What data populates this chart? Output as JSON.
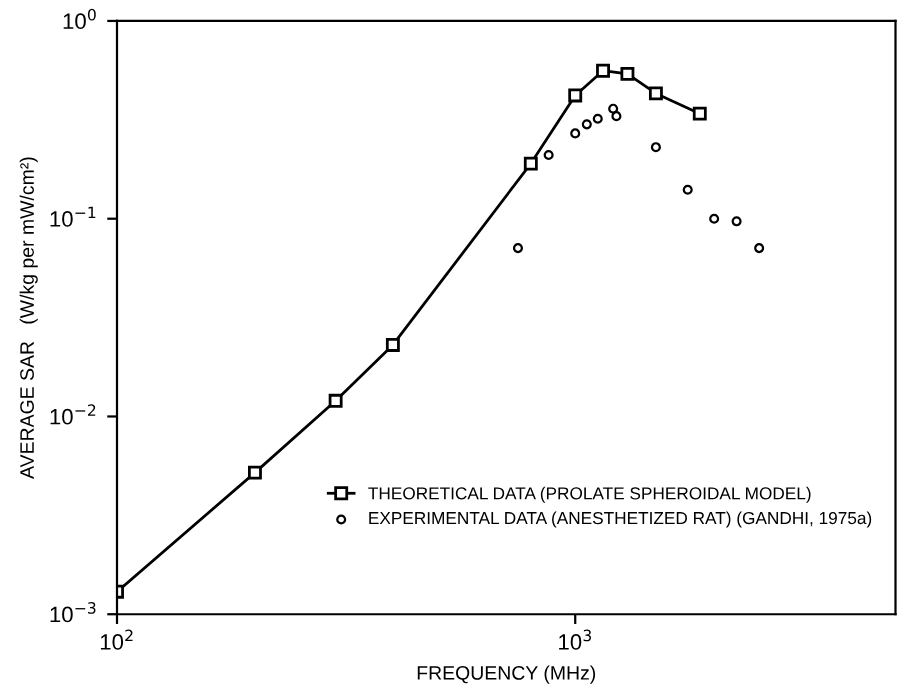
{
  "chart_data": {
    "type": "line",
    "xlabel": "FREQUENCY (MHz)",
    "ylabel": "AVERAGE SAR   (W/kg per mW/cm²)",
    "log": "xy",
    "xlim": [
      100,
      5000
    ],
    "ylim": [
      0.001,
      1
    ],
    "xticks": [
      {
        "value": 100,
        "label": "10$^{2}$"
      },
      {
        "value": 1000,
        "label": "10$^{3}$"
      }
    ],
    "yticks": [
      {
        "value": 0.001,
        "label": "10$^{−3}$"
      },
      {
        "value": 0.01,
        "label": "10$^{−2}$"
      },
      {
        "value": 0.1,
        "label": "10$^{−1}$"
      },
      {
        "value": 1,
        "label": "10$^{0}$"
      }
    ],
    "grid": false,
    "legend": "bottom right",
    "series": [
      {
        "name": "THEORETICAL DATA (PROLATE SPHEROIDAL MODEL)",
        "marker": "square",
        "color": "#000000",
        "x": [
          100,
          200,
          300,
          400,
          800,
          1000,
          1150,
          1300,
          1500,
          1870
        ],
        "values": [
          0.0013,
          0.0052,
          0.012,
          0.023,
          0.19,
          0.42,
          0.56,
          0.54,
          0.43,
          0.34
        ]
      },
      {
        "name": "EXPERIMENTAL DATA (ANESTHETIZED RAT) (GANDHI, 1975a)",
        "type": "scatter",
        "marker": "circle",
        "color": "#000000",
        "x": [
          750,
          875,
          1000,
          1060,
          1120,
          1210,
          1230,
          1500,
          1760,
          2010,
          2250,
          2520
        ],
        "values": [
          0.071,
          0.21,
          0.27,
          0.3,
          0.32,
          0.36,
          0.33,
          0.23,
          0.14,
          0.1,
          0.097,
          0.071
        ]
      }
    ]
  }
}
